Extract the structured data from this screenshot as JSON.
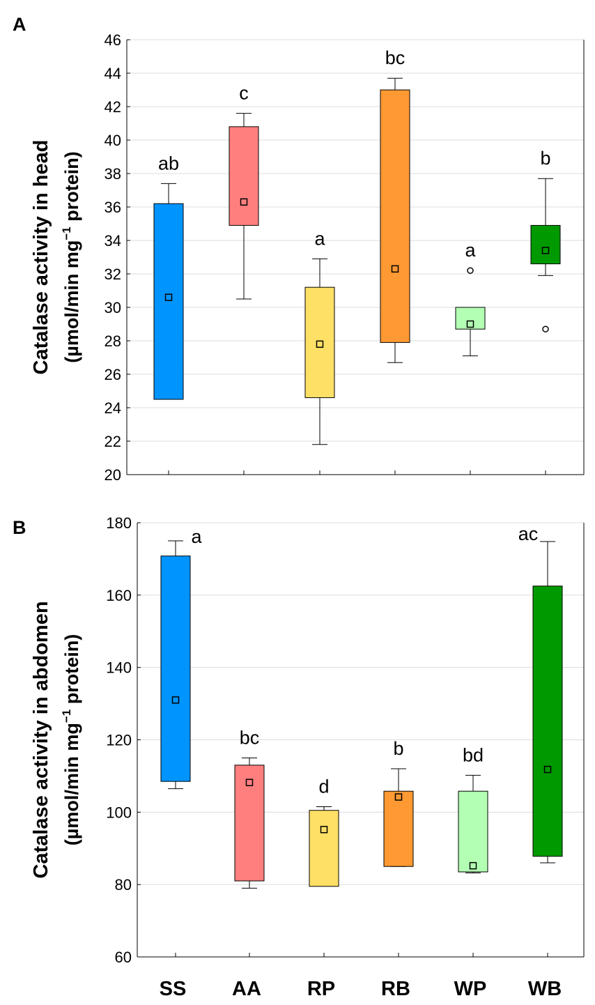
{
  "figure": {
    "panel_a_label": "A",
    "panel_b_label": "B"
  },
  "chart_data": [
    {
      "type": "box",
      "panel": "A",
      "ylabel_line1": "Catalase activity in head",
      "ylabel_line2_pre": "(µmol/min mg",
      "ylabel_line2_sup": "−1",
      "ylabel_line2_post": " protein)",
      "ylim": [
        20,
        46
      ],
      "yticks": [
        20,
        22,
        24,
        26,
        28,
        30,
        32,
        34,
        36,
        38,
        40,
        42,
        44,
        46
      ],
      "grid": true,
      "categories": [
        "SS",
        "AA",
        "RP",
        "RB",
        "WP",
        "WB"
      ],
      "colors": [
        "#0094ff",
        "#ff7f7f",
        "#ffe066",
        "#ff9933",
        "#b3ffb3",
        "#009900"
      ],
      "boxes": [
        {
          "whisker_low": null,
          "q1": 24.5,
          "q3": 36.2,
          "whisker_high": 37.4,
          "mean": 30.6,
          "outliers": [],
          "letter": "ab"
        },
        {
          "whisker_low": 30.5,
          "q1": 34.9,
          "q3": 40.8,
          "whisker_high": 41.6,
          "mean": 36.3,
          "outliers": [],
          "letter": "c"
        },
        {
          "whisker_low": 21.8,
          "q1": 24.6,
          "q3": 31.2,
          "whisker_high": 32.9,
          "mean": 27.8,
          "outliers": [],
          "letter": "a"
        },
        {
          "whisker_low": 26.7,
          "q1": 27.9,
          "q3": 43.0,
          "whisker_high": 43.7,
          "mean": 32.3,
          "outliers": [],
          "letter": "bc"
        },
        {
          "whisker_low": 27.1,
          "q1": 28.7,
          "q3": 30.0,
          "whisker_high": null,
          "mean": 29.0,
          "outliers": [
            32.2
          ],
          "letter": "a"
        },
        {
          "whisker_low": 31.9,
          "q1": 32.6,
          "q3": 34.9,
          "whisker_high": 37.7,
          "mean": 33.4,
          "outliers": [
            28.7
          ],
          "letter": "b"
        }
      ]
    },
    {
      "type": "box",
      "panel": "B",
      "ylabel_line1": "Catalase activity in abdomen",
      "ylabel_line2_pre": "(µmol/min mg",
      "ylabel_line2_sup": "−1",
      "ylabel_line2_post": " protein)",
      "ylim": [
        60,
        180
      ],
      "yticks": [
        60,
        80,
        100,
        120,
        140,
        160,
        180
      ],
      "grid": true,
      "categories": [
        "SS",
        "AA",
        "RP",
        "RB",
        "WP",
        "WB"
      ],
      "colors": [
        "#0094ff",
        "#ff7f7f",
        "#ffe066",
        "#ff9933",
        "#b3ffb3",
        "#009900"
      ],
      "boxes": [
        {
          "whisker_low": 106.5,
          "q1": 108.5,
          "q3": 170.8,
          "whisker_high": 175.0,
          "mean": 131.0,
          "outliers": [],
          "letter": "a"
        },
        {
          "whisker_low": 79.0,
          "q1": 81.0,
          "q3": 113.0,
          "whisker_high": 115.0,
          "mean": 108.2,
          "outliers": [],
          "letter": "bc"
        },
        {
          "whisker_low": null,
          "q1": 79.5,
          "q3": 100.5,
          "whisker_high": 101.5,
          "mean": 95.2,
          "outliers": [],
          "letter": "d"
        },
        {
          "whisker_low": 85.0,
          "q1": 85.0,
          "q3": 105.8,
          "whisker_high": 112.0,
          "mean": 104.2,
          "outliers": [],
          "letter": "b"
        },
        {
          "whisker_low": 83.2,
          "q1": 83.5,
          "q3": 105.8,
          "whisker_high": 110.2,
          "mean": 85.2,
          "outliers": [],
          "letter": "bd"
        },
        {
          "whisker_low": 86.0,
          "q1": 87.8,
          "q3": 162.5,
          "whisker_high": 174.8,
          "mean": 111.8,
          "outliers": [],
          "letter": "ac"
        }
      ]
    }
  ]
}
